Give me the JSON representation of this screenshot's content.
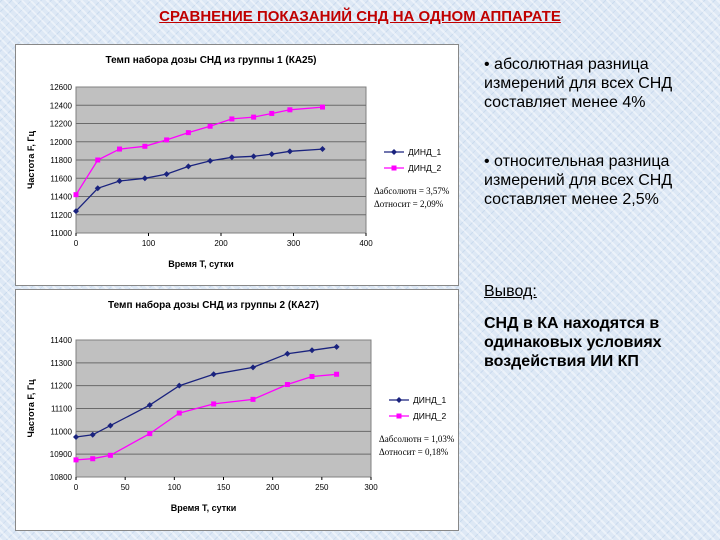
{
  "slide": {
    "title": "СРАВНЕНИЕ ПОКАЗАНИЙ СНД НА ОДНОМ АППАРАТЕ",
    "bullets": [
      "• абсолютная разница измерений для всех СНД составляет менее 4%",
      "• относительная разница измерений для всех СНД составляет менее 2,5%"
    ],
    "conclusion_heading": "Вывод:",
    "conclusion_text": "СНД в КА находятся в одинаковых условиях воздействия ИИ КП"
  },
  "colors": {
    "series1": "#1a237e",
    "series2": "#ff00ff",
    "plot_bg": "#c0c0c0",
    "title_red": "#c00000"
  },
  "chart_data": [
    {
      "type": "line",
      "title": "Темп набора дозы СНД из группы 1 (КА25)",
      "xlabel": "Время Т, сутки",
      "ylabel": "Частота F, Гц",
      "xlim": [
        0,
        400
      ],
      "ylim": [
        11000,
        12600
      ],
      "xticks": [
        "0",
        "100",
        "200",
        "300",
        "400"
      ],
      "yticks": [
        "11000",
        "11200",
        "11400",
        "11600",
        "11800",
        "12000",
        "12200",
        "12400",
        "12600"
      ],
      "grid": true,
      "legend_position": "right",
      "annotations": [
        "Δабсолютн = 3,57%",
        "Δотносит = 2,09%"
      ],
      "series": [
        {
          "name": "ДИНД_1",
          "marker": "diamond",
          "x": [
            0,
            30,
            60,
            95,
            125,
            155,
            185,
            215,
            245,
            270,
            295,
            340
          ],
          "y": [
            11240,
            11490,
            11570,
            11600,
            11645,
            11730,
            11790,
            11830,
            11840,
            11865,
            11895,
            11920
          ]
        },
        {
          "name": "ДИНД_2",
          "marker": "square",
          "x": [
            0,
            30,
            60,
            95,
            125,
            155,
            185,
            215,
            245,
            270,
            295,
            340
          ],
          "y": [
            11420,
            11800,
            11920,
            11950,
            12020,
            12100,
            12170,
            12250,
            12270,
            12310,
            12350,
            12380
          ]
        }
      ]
    },
    {
      "type": "line",
      "title": "Темп набора дозы СНД из группы 2 (КА27)",
      "xlabel": "Время Т, сутки",
      "ylabel": "Частота F, Гц",
      "xlim": [
        0,
        300
      ],
      "ylim": [
        10800,
        11400
      ],
      "xticks": [
        "0",
        "50",
        "100",
        "150",
        "200",
        "250",
        "300"
      ],
      "yticks": [
        "10800",
        "10900",
        "11000",
        "11100",
        "11200",
        "11300",
        "11400"
      ],
      "grid": true,
      "legend_position": "right",
      "annotations": [
        "Δабсолютн = 1,03%",
        "Δотносит = 0,18%"
      ],
      "series": [
        {
          "name": "ДИНД_1",
          "marker": "diamond",
          "x": [
            0,
            17,
            35,
            75,
            105,
            140,
            180,
            215,
            240,
            265
          ],
          "y": [
            10975,
            10985,
            11025,
            11115,
            11200,
            11250,
            11280,
            11340,
            11355,
            11370
          ]
        },
        {
          "name": "ДИНД_2",
          "marker": "square",
          "x": [
            0,
            17,
            35,
            75,
            105,
            140,
            180,
            215,
            240,
            265
          ],
          "y": [
            10875,
            10880,
            10895,
            10990,
            11080,
            11120,
            11140,
            11205,
            11240,
            11250
          ]
        }
      ]
    }
  ]
}
